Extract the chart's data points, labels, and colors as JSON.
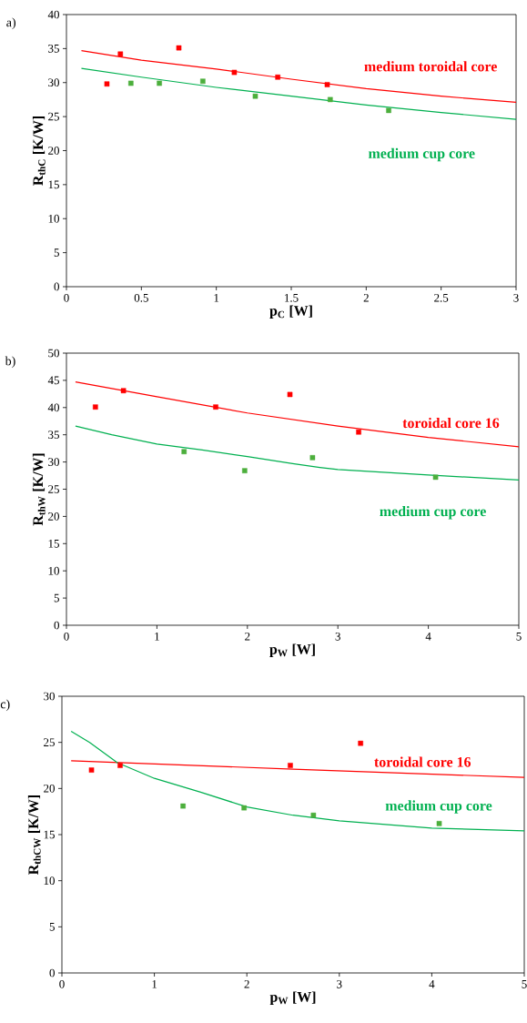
{
  "chart_data": [
    {
      "type": "scatter",
      "xlabel": "p$_{C}$ [W]",
      "ylabel": "R$_{thC}$ [K/W]",
      "xlim": [
        0,
        3
      ],
      "ylim": [
        0,
        40
      ],
      "xticks": [
        0,
        0.5,
        1,
        1.5,
        2,
        2.5,
        3
      ],
      "yticks": [
        0,
        5,
        10,
        15,
        20,
        25,
        30,
        35,
        40
      ],
      "series": [
        {
          "marker": "square",
          "color": "#ff0000",
          "x": [
            0.27,
            0.36,
            0.75,
            1.12,
            1.41,
            1.74
          ],
          "values": [
            29.8,
            34.2,
            35.1,
            31.5,
            30.8,
            29.7
          ]
        },
        {
          "marker": "square",
          "color": "#4caf3c",
          "x": [
            0.43,
            0.62,
            0.91,
            1.26,
            1.76,
            2.15
          ],
          "values": [
            29.9,
            29.9,
            30.2,
            28.0,
            27.5,
            25.9
          ]
        },
        {
          "type": "line",
          "name": "medium toroidal core",
          "marker": "none",
          "color": "#ff0000",
          "x": [
            0.1,
            0.5,
            1,
            1.5,
            2,
            2.5,
            3
          ],
          "values": [
            34.7,
            33.3,
            32.0,
            30.5,
            29.1,
            28.0,
            27.1
          ]
        },
        {
          "type": "line",
          "name": "medium cup core",
          "marker": "none",
          "color": "#00b050",
          "x": [
            0.1,
            0.5,
            1,
            1.5,
            2,
            2.5,
            3
          ],
          "values": [
            32.1,
            30.8,
            29.3,
            28.0,
            26.7,
            25.6,
            24.6
          ]
        }
      ],
      "annotations": [
        "a)"
      ]
    },
    {
      "type": "scatter",
      "xlabel": "p$_{W}$ [W]",
      "ylabel": "R$_{thW}$ [K/W]",
      "xlim": [
        0,
        5
      ],
      "ylim": [
        0,
        50
      ],
      "xticks": [
        0,
        1,
        2,
        3,
        4,
        5
      ],
      "yticks": [
        0,
        5,
        10,
        15,
        20,
        25,
        30,
        35,
        40,
        45,
        50
      ],
      "series": [
        {
          "marker": "square",
          "color": "#ff0000",
          "x": [
            0.32,
            0.63,
            1.65,
            2.47,
            3.23
          ],
          "values": [
            40.1,
            43.1,
            40.1,
            42.4,
            35.5
          ]
        },
        {
          "marker": "square",
          "color": "#4caf3c",
          "x": [
            1.3,
            1.97,
            2.72,
            4.08
          ],
          "values": [
            31.9,
            28.4,
            30.8,
            27.2
          ]
        },
        {
          "type": "line",
          "name": "toroidal core 16",
          "marker": "none",
          "color": "#ff0000",
          "x": [
            0.1,
            1,
            2,
            3,
            4,
            5
          ],
          "values": [
            44.7,
            42.0,
            39.0,
            36.6,
            34.5,
            32.8
          ]
        },
        {
          "type": "line",
          "name": "medium cup core",
          "marker": "none",
          "color": "#00b050",
          "x": [
            0.1,
            0.5,
            1,
            1.5,
            2,
            2.5,
            2.8,
            3,
            4,
            5
          ],
          "values": [
            36.6,
            35.0,
            33.3,
            32.2,
            31.0,
            29.7,
            29.0,
            28.6,
            27.6,
            26.7
          ]
        }
      ],
      "annotations": [
        "b)"
      ]
    },
    {
      "type": "scatter",
      "xlabel": "p$_{W}$ [W]",
      "ylabel": "R$_{thCW}$ [K/W]",
      "xlim": [
        0,
        5
      ],
      "ylim": [
        0,
        30
      ],
      "xticks": [
        0,
        1,
        2,
        3,
        4,
        5
      ],
      "yticks": [
        0,
        5,
        10,
        15,
        20,
        25,
        30
      ],
      "series": [
        {
          "marker": "square",
          "color": "#ff0000",
          "x": [
            0.32,
            0.63,
            2.47,
            3.23
          ],
          "values": [
            22.0,
            22.5,
            22.5,
            24.9
          ]
        },
        {
          "marker": "square",
          "color": "#4caf3c",
          "x": [
            1.31,
            1.97,
            2.72,
            4.08
          ],
          "values": [
            18.1,
            17.9,
            17.1,
            16.2
          ]
        },
        {
          "type": "line",
          "name": "toroidal core 16",
          "marker": "none",
          "color": "#ff0000",
          "x": [
            0.1,
            2.5,
            5
          ],
          "values": [
            23.0,
            22.1,
            21.2
          ]
        },
        {
          "type": "line",
          "name": "medium cup core",
          "marker": "none",
          "color": "#00b050",
          "x": [
            0.1,
            0.3,
            0.6,
            1,
            1.5,
            2,
            2.5,
            3,
            4,
            5
          ],
          "values": [
            26.2,
            25.0,
            22.8,
            21.1,
            19.6,
            18.0,
            17.1,
            16.5,
            15.7,
            15.4
          ]
        }
      ],
      "annotations": [
        "c)"
      ]
    }
  ]
}
